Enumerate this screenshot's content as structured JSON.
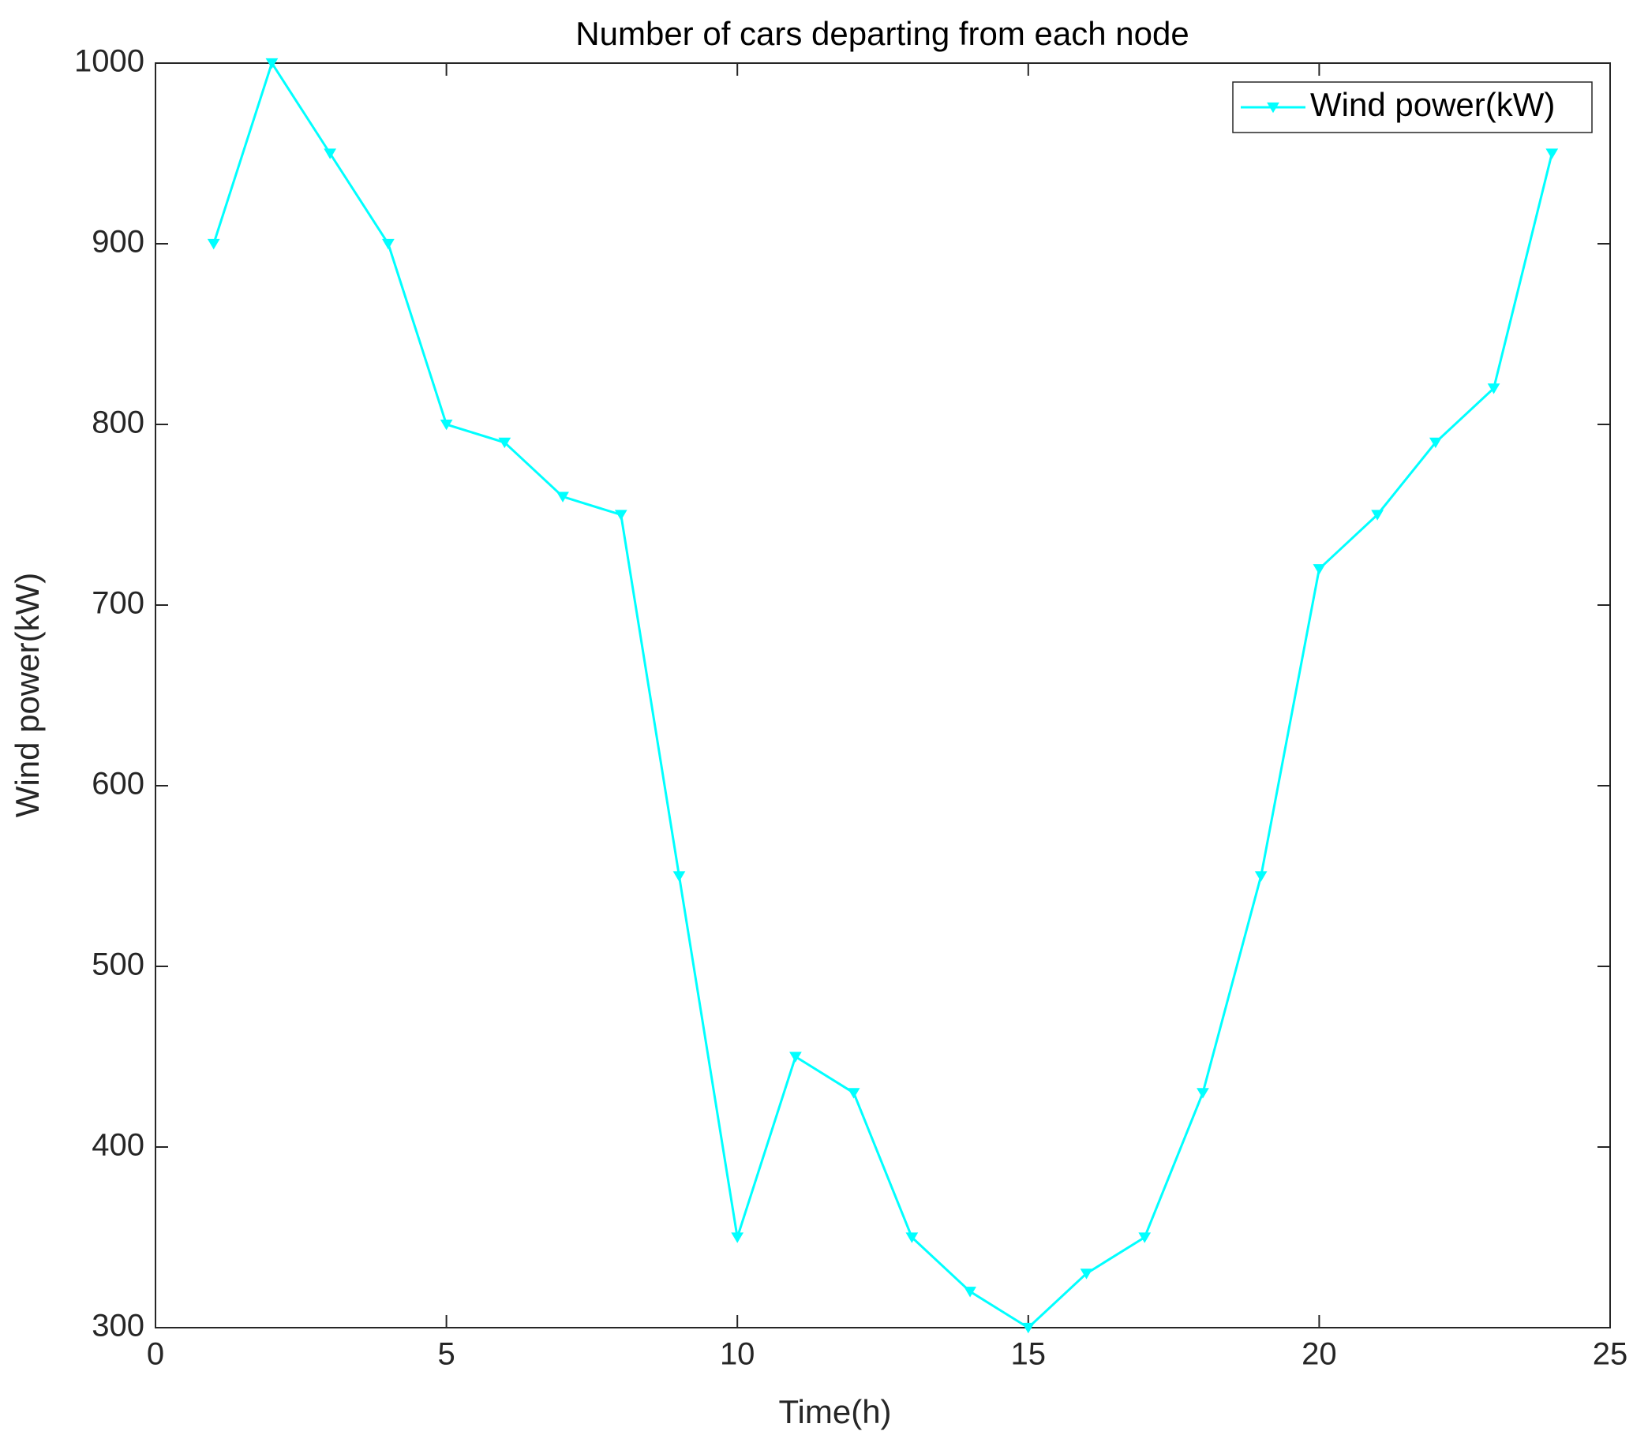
{
  "chart_data": {
    "type": "line",
    "title": "Number of cars departing from each node",
    "xlabel": "Time(h)",
    "ylabel": "Wind power(kW)",
    "x": [
      1,
      2,
      3,
      4,
      5,
      6,
      7,
      8,
      9,
      10,
      11,
      12,
      13,
      14,
      15,
      16,
      17,
      18,
      19,
      20,
      21,
      22,
      23,
      24
    ],
    "series": [
      {
        "name": "Wind power(kW)",
        "color": "#00ffff",
        "marker": "v",
        "values": [
          900,
          1000,
          950,
          900,
          800,
          790,
          760,
          750,
          550,
          350,
          450,
          430,
          350,
          320,
          300,
          330,
          350,
          430,
          550,
          720,
          750,
          790,
          820,
          950
        ]
      }
    ],
    "xlim": [
      0,
      25
    ],
    "xticks": [
      0,
      5,
      10,
      15,
      20,
      25
    ],
    "ylim": [
      300,
      1000
    ],
    "yticks": [
      300,
      400,
      500,
      600,
      700,
      800,
      900,
      1000
    ],
    "grid": false,
    "legend": "northeast"
  }
}
